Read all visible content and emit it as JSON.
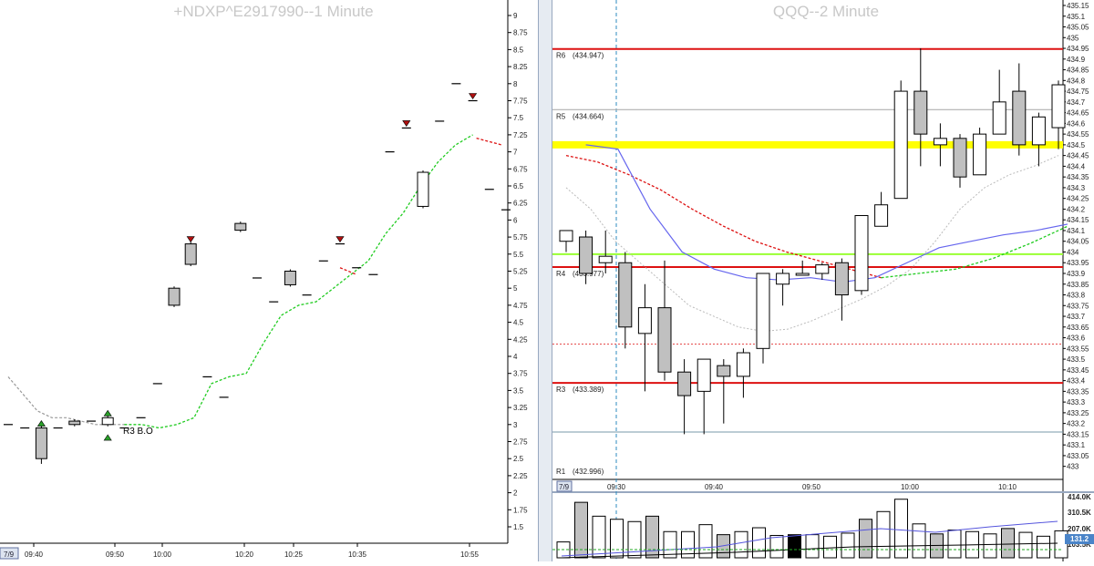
{
  "left_chart": {
    "title": "+NDXP^E2917990--1 Minute",
    "scale_label": "7/9",
    "annotation": "R3 B.O",
    "y_ticks": [
      "9",
      "8.75",
      "8.5",
      "8.25",
      "8",
      "7.75",
      "7.5",
      "7.25",
      "7",
      "6.75",
      "6.5",
      "6.25",
      "6",
      "5.75",
      "5.5",
      "5.25",
      "5",
      "4.75",
      "4.5",
      "4.25",
      "4",
      "3.75",
      "3.5",
      "3.25",
      "3",
      "2.75",
      "2.5",
      "2.25",
      "2",
      "1.75",
      "1.5"
    ],
    "x_ticks": [
      "09:40",
      "09:50",
      "10:00",
      "10:20",
      "10:25",
      "10:35",
      "10:55"
    ],
    "colors": {
      "bull_body": "#ffffff",
      "bear_body": "#c0c0c0",
      "signal_up": "#2aa02a",
      "signal_down": "#b01010",
      "green_line": "#22cc22",
      "red_line": "#dd1111",
      "gray_line": "#999999"
    }
  },
  "right_chart": {
    "title": "QQQ--2 Minute",
    "scale_label": "7/9",
    "y_ticks": [
      "435.15",
      "435.1",
      "435.05",
      "435",
      "434.95",
      "434.9",
      "434.85",
      "434.8",
      "434.75",
      "434.7",
      "434.65",
      "434.6",
      "434.55",
      "434.5",
      "434.45",
      "434.4",
      "434.35",
      "434.3",
      "434.25",
      "434.2",
      "434.15",
      "434.1",
      "434.05",
      "434",
      "433.95",
      "433.9",
      "433.85",
      "433.8",
      "433.75",
      "433.7",
      "433.65",
      "433.6",
      "433.55",
      "433.5",
      "433.45",
      "433.4",
      "433.35",
      "433.3",
      "433.25",
      "433.2",
      "433.15",
      "433.1",
      "433.05",
      "433"
    ],
    "x_ticks": [
      "09:30",
      "09:40",
      "09:50",
      "10:00",
      "10:10"
    ],
    "levels": [
      {
        "label": "R6",
        "value": "(434.947)",
        "color": "#dd1111"
      },
      {
        "label": "R5",
        "value": "(434.664)",
        "color": "#b0b0b0"
      },
      {
        "label": "R4",
        "value": "(433.977)",
        "color": "#dd1111"
      },
      {
        "label": "R3",
        "value": "(433.389)",
        "color": "#dd1111"
      },
      {
        "label": "R1",
        "value": "(432.996)",
        "color": "#dd1111"
      }
    ],
    "volume_ticks": [
      "414.0K",
      "310.5K",
      "207.0K",
      "103.5K"
    ],
    "volume_current": "131.2",
    "colors": {
      "yellow_band": "#ffff00",
      "lime_line": "#99ff33",
      "blue_ma": "#6666ee",
      "red_dashed": "#dd1111",
      "gray_dotted": "#bbbbbb"
    }
  },
  "chart_data": [
    {
      "type": "candlestick",
      "title": "+NDXP^E2917990--1 Minute",
      "ylim": [
        1.5,
        9
      ],
      "bars": [
        {
          "o": 3.0,
          "c": 3.0,
          "h": 3.0,
          "l": 3.0
        },
        {
          "o": 2.95,
          "c": 2.95,
          "h": 2.95,
          "l": 2.95
        },
        {
          "o": 2.95,
          "c": 2.5,
          "h": 2.95,
          "l": 2.45
        },
        {
          "o": 2.95,
          "c": 2.95,
          "h": 2.95,
          "l": 2.95
        },
        {
          "o": 3.05,
          "c": 3.0,
          "h": 3.05,
          "l": 3.0
        },
        {
          "o": 3.05,
          "c": 3.05,
          "h": 3.05,
          "l": 3.05
        },
        {
          "o": 3.0,
          "c": 3.1,
          "h": 3.1,
          "l": 3.0
        },
        {
          "o": 2.95,
          "c": 2.95,
          "h": 2.95,
          "l": 2.95
        },
        {
          "o": 3.1,
          "c": 3.1,
          "h": 3.1,
          "l": 3.1
        },
        {
          "o": 3.6,
          "c": 3.6,
          "h": 3.6,
          "l": 3.6
        },
        {
          "o": 5.0,
          "c": 4.75,
          "h": 5.0,
          "l": 4.75
        },
        {
          "o": 5.65,
          "c": 5.35,
          "h": 5.65,
          "l": 5.35
        },
        {
          "o": 3.7,
          "c": 3.7,
          "h": 3.7,
          "l": 3.7
        },
        {
          "o": 3.4,
          "c": 3.4,
          "h": 3.4,
          "l": 3.4
        },
        {
          "o": 5.95,
          "c": 5.85,
          "h": 5.95,
          "l": 5.85
        },
        {
          "o": 5.15,
          "c": 5.15,
          "h": 5.15,
          "l": 5.15
        },
        {
          "o": 4.8,
          "c": 4.8,
          "h": 4.8,
          "l": 4.8
        },
        {
          "o": 5.25,
          "c": 5.05,
          "h": 5.25,
          "l": 5.05
        },
        {
          "o": 4.9,
          "c": 4.9,
          "h": 4.9,
          "l": 4.9
        },
        {
          "o": 5.4,
          "c": 5.4,
          "h": 5.4,
          "l": 5.4
        },
        {
          "o": 5.65,
          "c": 5.65,
          "h": 5.65,
          "l": 5.65
        },
        {
          "o": 5.3,
          "c": 5.3,
          "h": 5.3,
          "l": 5.3
        },
        {
          "o": 5.2,
          "c": 5.2,
          "h": 5.2,
          "l": 5.2
        },
        {
          "o": 7.0,
          "c": 7.0,
          "h": 7.0,
          "l": 7.0
        },
        {
          "o": 7.35,
          "c": 7.35,
          "h": 7.35,
          "l": 7.35
        },
        {
          "o": 6.2,
          "c": 6.7,
          "h": 6.7,
          "l": 6.2
        },
        {
          "o": 7.45,
          "c": 7.45,
          "h": 7.45,
          "l": 7.45
        },
        {
          "o": 8.0,
          "c": 8.0,
          "h": 8.0,
          "l": 8.0
        },
        {
          "o": 7.75,
          "c": 7.75,
          "h": 7.75,
          "l": 7.75
        },
        {
          "o": 6.45,
          "c": 6.45,
          "h": 6.45,
          "l": 6.45
        },
        {
          "o": 6.15,
          "c": 6.15,
          "h": 6.15,
          "l": 6.15
        }
      ],
      "signals_up": [
        2,
        6
      ],
      "signals_down": [
        11,
        20,
        24,
        28
      ],
      "trail_green": [
        3.0,
        3.0,
        2.95,
        3.0,
        3.1,
        3.6,
        3.7,
        3.75,
        4.2,
        4.6,
        4.75,
        4.8,
        5.0,
        5.2,
        5.4,
        5.8,
        6.1,
        6.5,
        6.85,
        7.1,
        7.25
      ],
      "trail_red": [
        5.25,
        5.2,
        7.15,
        7.2
      ]
    },
    {
      "type": "candlestick",
      "title": "QQQ--2 Minute",
      "ylim": [
        433.0,
        435.15
      ],
      "bars": [
        {
          "o": 434.05,
          "c": 434.1,
          "h": 434.1,
          "l": 434.0
        },
        {
          "o": 434.07,
          "c": 433.9,
          "h": 434.1,
          "l": 433.85
        },
        {
          "o": 433.95,
          "c": 433.98,
          "h": 434.1,
          "l": 433.9
        },
        {
          "o": 433.95,
          "c": 433.65,
          "h": 434.0,
          "l": 433.55
        },
        {
          "o": 433.62,
          "c": 433.74,
          "h": 433.85,
          "l": 433.35
        },
        {
          "o": 433.74,
          "c": 433.44,
          "h": 433.96,
          "l": 433.4
        },
        {
          "o": 433.44,
          "c": 433.33,
          "h": 433.5,
          "l": 433.15
        },
        {
          "o": 433.35,
          "c": 433.5,
          "h": 433.5,
          "l": 433.15
        },
        {
          "o": 433.47,
          "c": 433.42,
          "h": 433.5,
          "l": 433.2
        },
        {
          "o": 433.42,
          "c": 433.53,
          "h": 433.55,
          "l": 433.32
        },
        {
          "o": 433.55,
          "c": 433.9,
          "h": 433.9,
          "l": 433.48
        },
        {
          "o": 433.85,
          "c": 433.9,
          "h": 433.92,
          "l": 433.75
        },
        {
          "o": 433.9,
          "c": 433.9,
          "h": 433.96,
          "l": 433.9
        },
        {
          "o": 433.9,
          "c": 433.94,
          "h": 433.95,
          "l": 433.87
        },
        {
          "o": 433.95,
          "c": 433.8,
          "h": 433.97,
          "l": 433.68
        },
        {
          "o": 433.82,
          "c": 434.17,
          "h": 434.17,
          "l": 433.8
        },
        {
          "o": 434.12,
          "c": 434.22,
          "h": 434.28,
          "l": 434.12
        },
        {
          "o": 434.25,
          "c": 434.75,
          "h": 434.8,
          "l": 434.25
        },
        {
          "o": 434.75,
          "c": 434.55,
          "h": 434.95,
          "l": 434.4
        },
        {
          "o": 434.5,
          "c": 434.53,
          "h": 434.6,
          "l": 434.4
        },
        {
          "o": 434.53,
          "c": 434.35,
          "h": 434.55,
          "l": 434.3
        },
        {
          "o": 434.36,
          "c": 434.55,
          "h": 434.58,
          "l": 434.36
        },
        {
          "o": 434.55,
          "c": 434.7,
          "h": 434.85,
          "l": 434.55
        },
        {
          "o": 434.75,
          "c": 434.5,
          "h": 434.88,
          "l": 434.45
        },
        {
          "o": 434.5,
          "c": 434.63,
          "h": 434.65,
          "l": 434.4
        },
        {
          "o": 434.58,
          "c": 434.78,
          "h": 434.8,
          "l": 434.48
        }
      ],
      "volume_k": [
        103,
        360,
        270,
        250,
        235,
        270,
        170,
        170,
        215,
        150,
        170,
        195,
        145,
        150,
        150,
        140,
        160,
        250,
        300,
        380,
        220,
        155,
        180,
        170,
        155,
        190,
        165,
        140,
        175
      ]
    }
  ]
}
